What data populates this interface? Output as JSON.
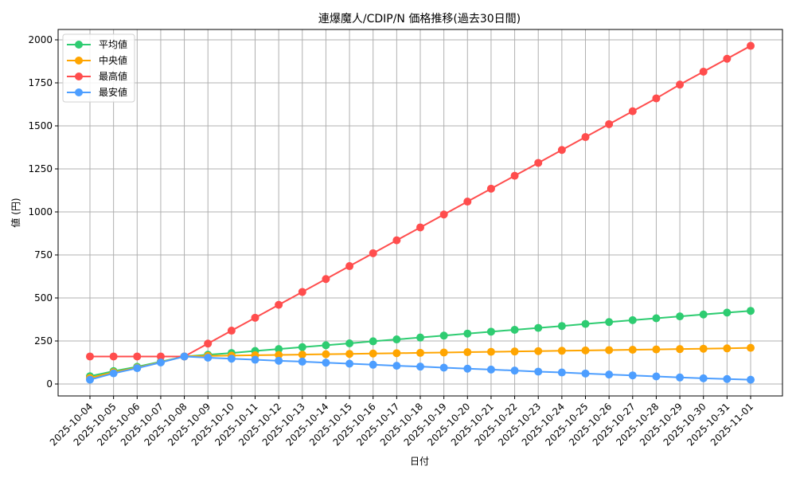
{
  "chart_data": {
    "type": "line",
    "title": "連爆魔人/CDIP/N 価格推移(過去30日間)",
    "xlabel": "日付",
    "ylabel": "値 (円)",
    "ylim": [
      -65,
      2055
    ],
    "yticks": [
      0,
      250,
      500,
      750,
      1000,
      1250,
      1500,
      1750,
      2000
    ],
    "grid": true,
    "legend_position": "upper left",
    "x": [
      "2025-10-04",
      "2025-10-05",
      "2025-10-06",
      "2025-10-07",
      "2025-10-08",
      "2025-10-09",
      "2025-10-10",
      "2025-10-11",
      "2025-10-12",
      "2025-10-13",
      "2025-10-14",
      "2025-10-15",
      "2025-10-16",
      "2025-10-17",
      "2025-10-18",
      "2025-10-19",
      "2025-10-20",
      "2025-10-21",
      "2025-10-22",
      "2025-10-23",
      "2025-10-24",
      "2025-10-25",
      "2025-10-26",
      "2025-10-27",
      "2025-10-28",
      "2025-10-29",
      "2025-10-30",
      "2025-10-31",
      "2025-11-01"
    ],
    "series": [
      {
        "name": "平均値",
        "color": "#2ecc71",
        "values": [
          45,
          75,
          100,
          130,
          160,
          170,
          180,
          192,
          203,
          214,
          225,
          236,
          248,
          259,
          270,
          281,
          293,
          304,
          315,
          326,
          337,
          349,
          360,
          371,
          382,
          393,
          404,
          415,
          425
        ]
      },
      {
        "name": "中央値",
        "color": "#ffa500",
        "values": [
          35,
          68,
          95,
          127,
          160,
          163,
          165,
          167,
          169,
          171,
          173,
          175,
          177,
          179,
          181,
          183,
          185,
          187,
          189,
          191,
          193,
          195,
          197,
          199,
          201,
          203,
          205,
          207,
          210
        ]
      },
      {
        "name": "最高値",
        "color": "#ff4d4d",
        "values": [
          160,
          160,
          160,
          160,
          160,
          235,
          310,
          385,
          460,
          535,
          610,
          685,
          760,
          835,
          910,
          985,
          1060,
          1135,
          1210,
          1285,
          1360,
          1435,
          1510,
          1585,
          1660,
          1740,
          1815,
          1890,
          1965
        ]
      },
      {
        "name": "最安値",
        "color": "#4d9eff",
        "values": [
          25,
          62,
          92,
          125,
          160,
          153,
          147,
          141,
          135,
          130,
          124,
          118,
          112,
          106,
          101,
          95,
          89,
          84,
          78,
          72,
          67,
          61,
          55,
          50,
          44,
          38,
          33,
          29,
          25
        ]
      }
    ]
  }
}
